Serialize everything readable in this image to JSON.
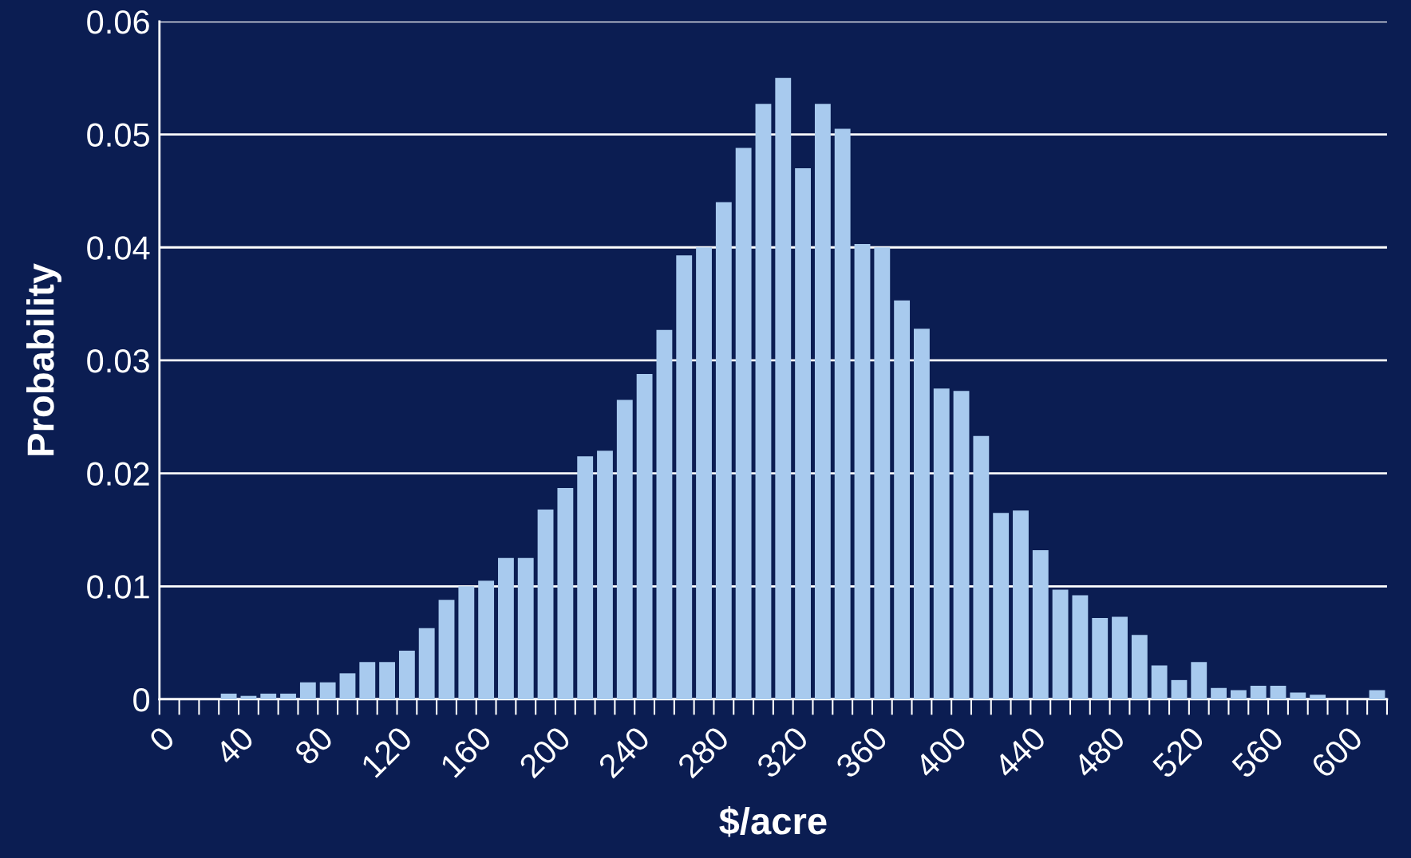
{
  "chart_data": {
    "type": "histogram",
    "xlabel": "$/acre",
    "ylabel": "Probability",
    "bins": [
      0,
      10,
      20,
      30,
      40,
      50,
      60,
      70,
      80,
      90,
      100,
      110,
      120,
      130,
      140,
      150,
      160,
      170,
      180,
      190,
      200,
      210,
      220,
      230,
      240,
      250,
      260,
      270,
      280,
      290,
      300,
      310,
      320,
      330,
      340,
      350,
      360,
      370,
      380,
      390,
      400,
      410,
      420,
      430,
      440,
      450,
      460,
      470,
      480,
      490,
      500,
      510,
      520,
      530,
      540,
      550,
      560,
      570,
      580,
      590,
      600,
      610,
      620
    ],
    "values": [
      0,
      0,
      0,
      0.0005,
      0.0003,
      0.0005,
      0.0005,
      0.0015,
      0.0015,
      0.0023,
      0.0033,
      0.0033,
      0.0043,
      0.0063,
      0.0088,
      0.01,
      0.0105,
      0.0125,
      0.0125,
      0.0168,
      0.0187,
      0.0215,
      0.022,
      0.0265,
      0.0288,
      0.0327,
      0.0393,
      0.04,
      0.044,
      0.0488,
      0.0527,
      0.055,
      0.047,
      0.0527,
      0.0505,
      0.0403,
      0.04,
      0.0353,
      0.0328,
      0.0275,
      0.0273,
      0.0233,
      0.0165,
      0.0167,
      0.0132,
      0.0097,
      0.0092,
      0.0072,
      0.0073,
      0.0057,
      0.003,
      0.0017,
      0.0033,
      0.001,
      0.0008,
      0.0012,
      0.0012,
      0.0006,
      0.0004,
      0,
      0,
      0.0008
    ],
    "color": "#a8caee",
    "xlim": [
      0,
      620
    ],
    "xticks": [
      0,
      40,
      80,
      120,
      160,
      200,
      240,
      280,
      320,
      360,
      400,
      440,
      480,
      520,
      560,
      600
    ],
    "ylim": [
      0,
      0.06
    ],
    "yticks": [
      0,
      0.01,
      0.02,
      0.03,
      0.04,
      0.05,
      0.06
    ],
    "grid": "y"
  }
}
